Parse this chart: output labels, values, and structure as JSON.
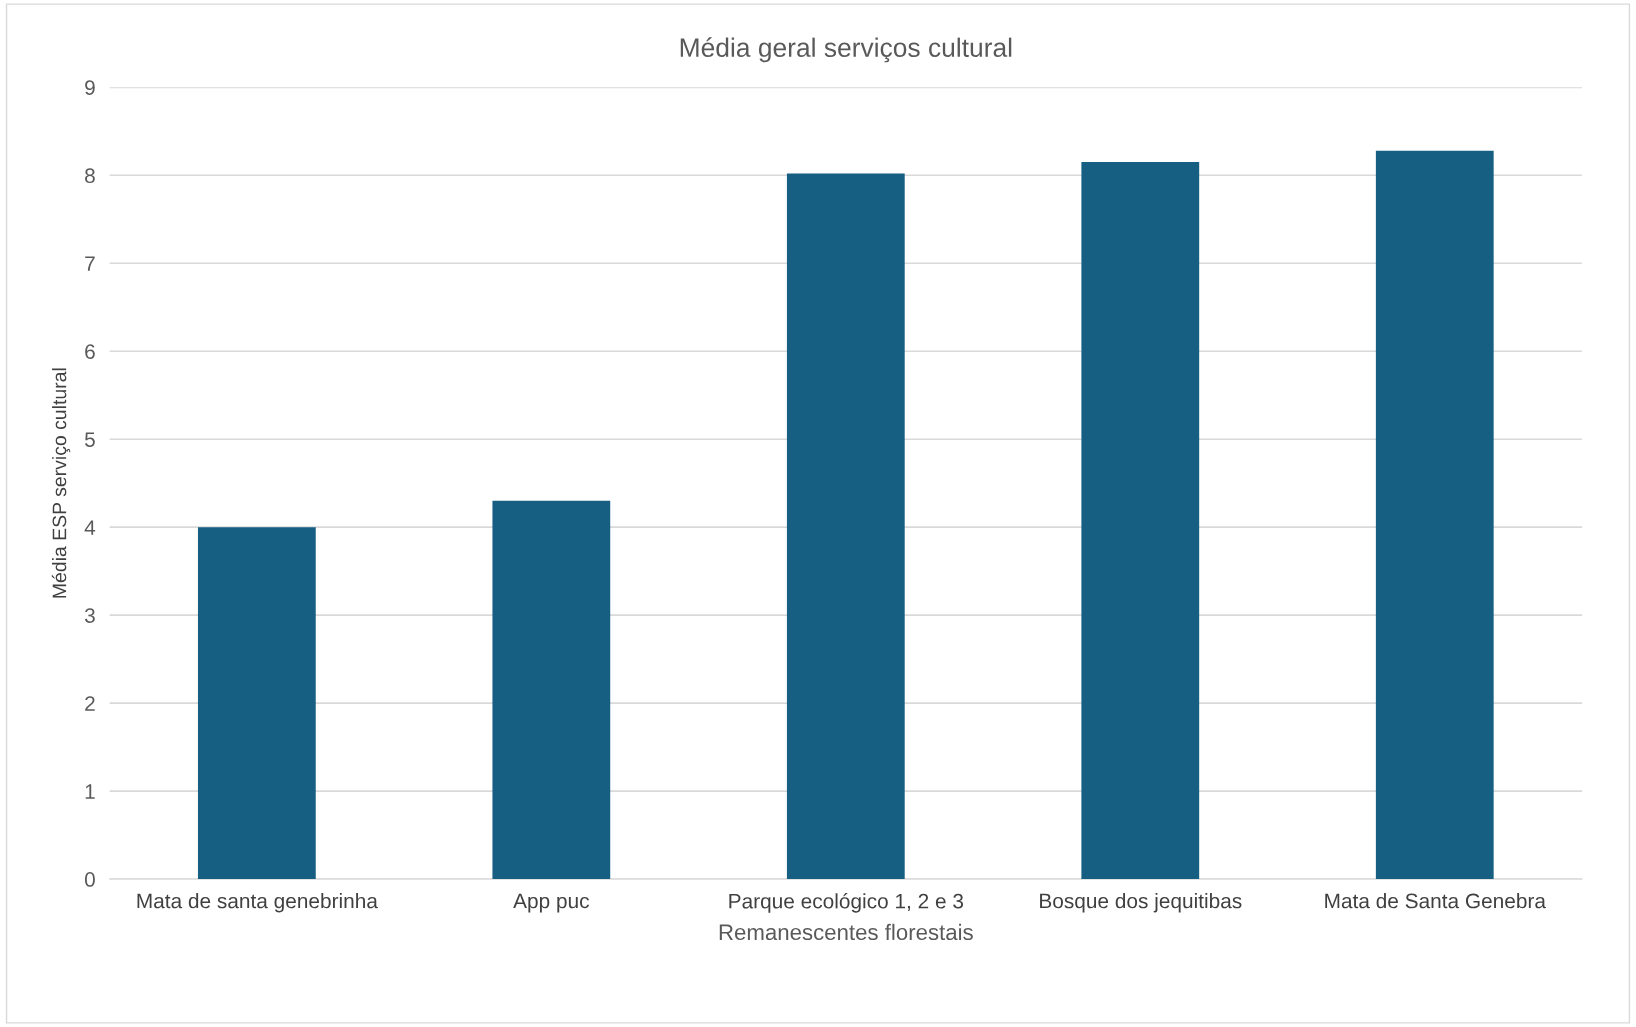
{
  "chart_data": {
    "type": "bar",
    "title": "Média geral serviços cultural",
    "xlabel": "Remanescentes florestais",
    "ylabel": "Média ESP serviço cultural",
    "categories": [
      "Mata de santa genebrinha",
      "App puc",
      "Parque ecológico 1, 2 e 3",
      "Bosque dos jequitibas",
      "Mata de Santa Genebra"
    ],
    "values": [
      4.0,
      4.3,
      8.02,
      8.15,
      8.28
    ],
    "color": "#175f82",
    "ylim": [
      0,
      9
    ],
    "yticks": [
      0,
      1,
      2,
      3,
      4,
      5,
      6,
      7,
      8,
      9
    ],
    "grid": "y",
    "legend": false
  }
}
